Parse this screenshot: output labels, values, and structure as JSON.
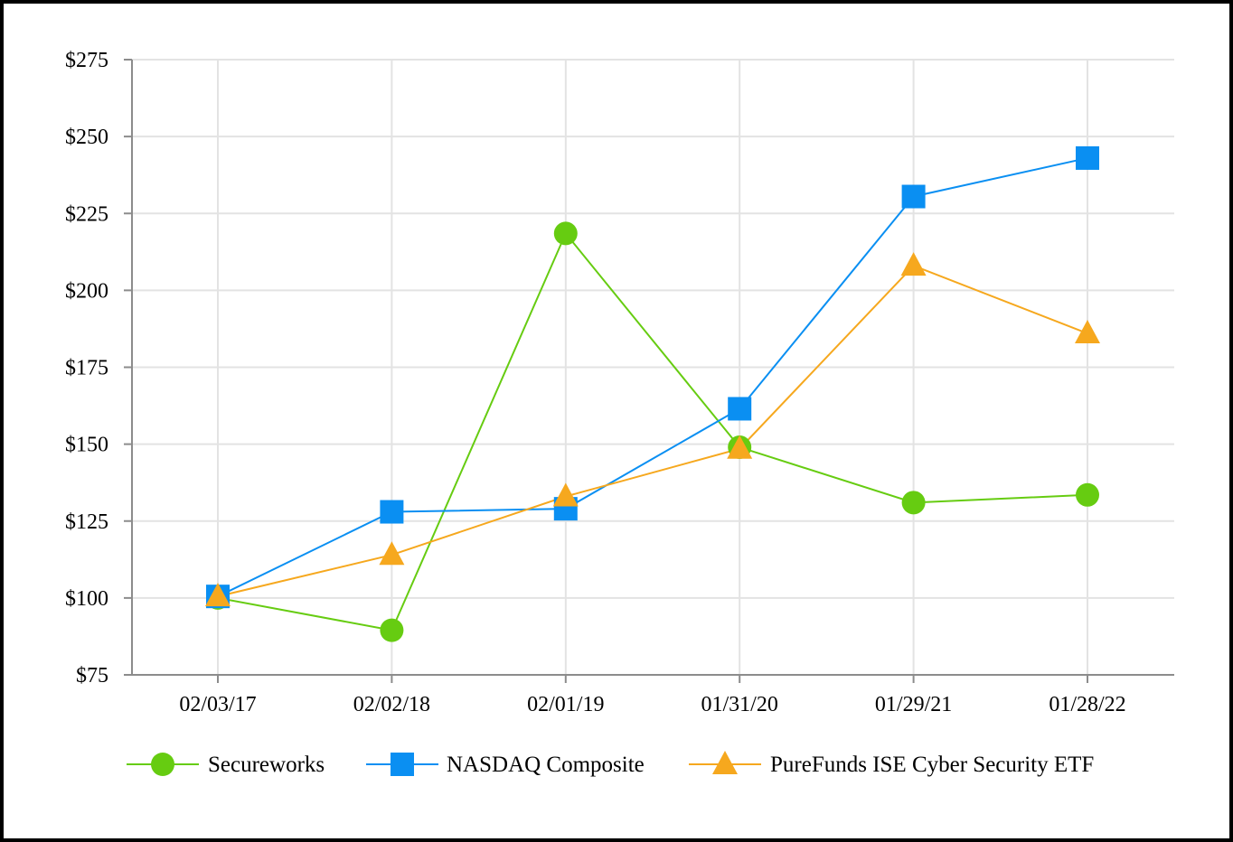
{
  "chart_data": {
    "type": "line",
    "title": "",
    "xlabel": "",
    "ylabel": "",
    "categories": [
      "02/03/17",
      "02/02/18",
      "02/01/19",
      "01/31/20",
      "01/29/21",
      "01/28/22"
    ],
    "ylim": [
      75,
      275
    ],
    "yticks": [
      75,
      100,
      125,
      150,
      175,
      200,
      225,
      250,
      275
    ],
    "ytick_labels": [
      "$75",
      "$100",
      "$125",
      "$150",
      "$175",
      "$200",
      "$225",
      "$250",
      "$275"
    ],
    "grid": true,
    "legend_position": "bottom",
    "series": [
      {
        "name": "Secureworks",
        "marker": "circle",
        "color": "#66CC11",
        "values": [
          100,
          89.5,
          218.5,
          149,
          131,
          133.5
        ]
      },
      {
        "name": "NASDAQ Composite",
        "marker": "square",
        "color": "#0A8FF2",
        "values": [
          100.5,
          128,
          129,
          161.5,
          230.5,
          243
        ]
      },
      {
        "name": "PureFunds ISE Cyber Security ETF",
        "marker": "triangle",
        "color": "#F6A81E",
        "values": [
          100.5,
          114,
          133,
          148.5,
          208,
          186
        ]
      }
    ]
  }
}
